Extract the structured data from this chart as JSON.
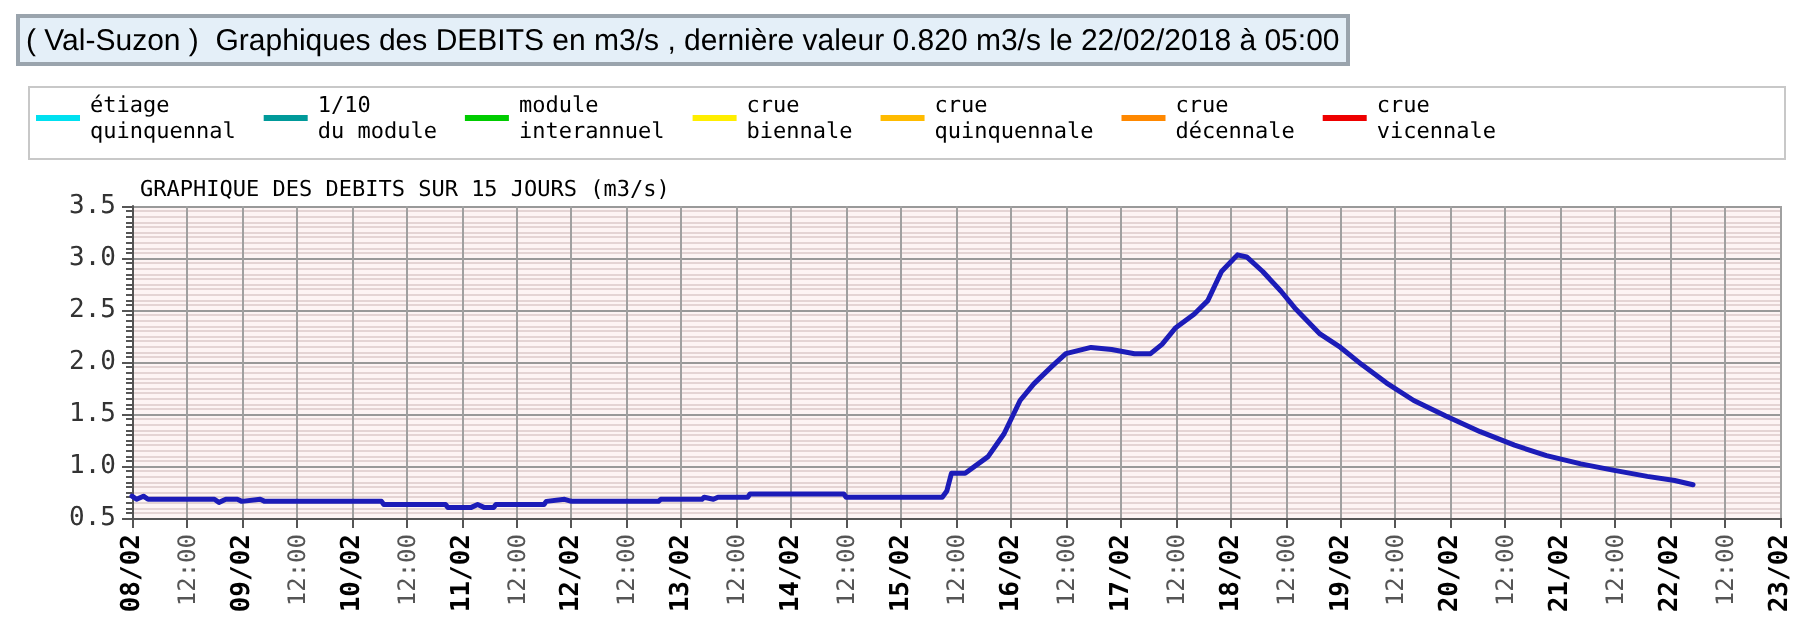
{
  "chart_data": {
    "type": "line",
    "title": "( Val-Suzon )  Graphiques des DEBITS en m3/s , dernière valeur 0.820 m3/s le 22/02/2018 à 05:00",
    "subtitle": "GRAPHIQUE DES DEBITS SUR 15 JOURS (m3/s)",
    "x": [
      "2018-02-08T00:00",
      "2018-02-08T01:00",
      "2018-02-08T02:30",
      "2018-02-08T03:30",
      "2018-02-08T18:00",
      "2018-02-08T19:00",
      "2018-02-08T20:30",
      "2018-02-08T23:00",
      "2018-02-09T00:00",
      "2018-02-09T04:00",
      "2018-02-09T05:00",
      "2018-02-10T06:30",
      "2018-02-10T07:00",
      "2018-02-10T20:30",
      "2018-02-10T21:00",
      "2018-02-11T02:00",
      "2018-02-11T03:30",
      "2018-02-11T05:00",
      "2018-02-11T07:00",
      "2018-02-11T07:30",
      "2018-02-11T18:00",
      "2018-02-11T18:30",
      "2018-02-11T22:30",
      "2018-02-12T00:00",
      "2018-02-12T19:00",
      "2018-02-12T19:30",
      "2018-02-13T04:30",
      "2018-02-13T05:00",
      "2018-02-13T07:00",
      "2018-02-13T08:00",
      "2018-02-13T14:30",
      "2018-02-13T15:00",
      "2018-02-14T11:30",
      "2018-02-14T12:00",
      "2018-02-15T09:00",
      "2018-02-15T10:00",
      "2018-02-15T11:00",
      "2018-02-15T14:00",
      "2018-02-15T19:00",
      "2018-02-15T22:30",
      "2018-02-16T02:00",
      "2018-02-16T05:00",
      "2018-02-16T09:00",
      "2018-02-16T12:00",
      "2018-02-16T17:30",
      "2018-02-16T22:00",
      "2018-02-17T03:00",
      "2018-02-17T06:30",
      "2018-02-17T09:00",
      "2018-02-17T12:00",
      "2018-02-17T16:00",
      "2018-02-17T19:00",
      "2018-02-17T22:00",
      "2018-02-18T01:30",
      "2018-02-18T03:30",
      "2018-02-18T07:00",
      "2018-02-18T11:00",
      "2018-02-18T14:00",
      "2018-02-18T19:30",
      "2018-02-19T00:00",
      "2018-02-19T04:30",
      "2018-02-19T10:00",
      "2018-02-19T16:00",
      "2018-02-19T23:00",
      "2018-02-20T06:30",
      "2018-02-20T14:00",
      "2018-02-20T21:00",
      "2018-02-21T04:30",
      "2018-02-21T11:30",
      "2018-02-21T19:00",
      "2018-02-22T01:00",
      "2018-02-22T05:00"
    ],
    "series": [
      {
        "color": "#1c1cb8",
        "values": [
          0.71,
          0.68,
          0.71,
          0.68,
          0.68,
          0.65,
          0.68,
          0.68,
          0.66,
          0.68,
          0.66,
          0.66,
          0.63,
          0.63,
          0.6,
          0.6,
          0.63,
          0.6,
          0.6,
          0.63,
          0.63,
          0.66,
          0.68,
          0.66,
          0.66,
          0.68,
          0.68,
          0.7,
          0.68,
          0.7,
          0.7,
          0.73,
          0.73,
          0.7,
          0.7,
          0.76,
          0.93,
          0.93,
          1.09,
          1.31,
          1.63,
          1.79,
          1.96,
          2.08,
          2.14,
          2.12,
          2.08,
          2.08,
          2.17,
          2.33,
          2.46,
          2.59,
          2.87,
          3.03,
          3.01,
          2.87,
          2.68,
          2.52,
          2.27,
          2.14,
          1.98,
          1.8,
          1.63,
          1.48,
          1.33,
          1.2,
          1.1,
          1.02,
          0.96,
          0.9,
          0.86,
          0.82
        ]
      },
      {
        "name": "étiage\nquinquennal",
        "color": "#00e0f0",
        "values": [
          null,
          null,
          null,
          null,
          null,
          null,
          null,
          null,
          null,
          null,
          null,
          null,
          null,
          null,
          null,
          null,
          null,
          null,
          null,
          null,
          null,
          null,
          null,
          null,
          null,
          null,
          null,
          null,
          null,
          null,
          null,
          null,
          null,
          null,
          null,
          null,
          null,
          null,
          null,
          null,
          null,
          null,
          null,
          null,
          null,
          null,
          null,
          null,
          null,
          null,
          null,
          null,
          null,
          null,
          null,
          null,
          null,
          null,
          null,
          null,
          null,
          null,
          null,
          null,
          null,
          null,
          null,
          null,
          null,
          null,
          null,
          null
        ]
      },
      {
        "name": "1/10\ndu module",
        "color": "#009a9a",
        "values": [
          null,
          null,
          null,
          null,
          null,
          null,
          null,
          null,
          null,
          null,
          null,
          null,
          null,
          null,
          null,
          null,
          null,
          null,
          null,
          null,
          null,
          null,
          null,
          null,
          null,
          null,
          null,
          null,
          null,
          null,
          null,
          null,
          null,
          null,
          null,
          null,
          null,
          null,
          null,
          null,
          null,
          null,
          null,
          null,
          null,
          null,
          null,
          null,
          null,
          null,
          null,
          null,
          null,
          null,
          null,
          null,
          null,
          null,
          null,
          null,
          null,
          null,
          null,
          null,
          null,
          null,
          null,
          null,
          null,
          null,
          null,
          null
        ]
      },
      {
        "name": "module\ninterannuel",
        "color": "#00cc00",
        "values": [
          null,
          null,
          null,
          null,
          null,
          null,
          null,
          null,
          null,
          null,
          null,
          null,
          null,
          null,
          null,
          null,
          null,
          null,
          null,
          null,
          null,
          null,
          null,
          null,
          null,
          null,
          null,
          null,
          null,
          null,
          null,
          null,
          null,
          null,
          null,
          null,
          null,
          null,
          null,
          null,
          null,
          null,
          null,
          null,
          null,
          null,
          null,
          null,
          null,
          null,
          null,
          null,
          null,
          null,
          null,
          null,
          null,
          null,
          null,
          null,
          null,
          null,
          null,
          null,
          null,
          null,
          null,
          null,
          null,
          null,
          null,
          null
        ]
      },
      {
        "name": "crue\nbiennale",
        "color": "#ffee00",
        "values": [
          null,
          null,
          null,
          null,
          null,
          null,
          null,
          null,
          null,
          null,
          null,
          null,
          null,
          null,
          null,
          null,
          null,
          null,
          null,
          null,
          null,
          null,
          null,
          null,
          null,
          null,
          null,
          null,
          null,
          null,
          null,
          null,
          null,
          null,
          null,
          null,
          null,
          null,
          null,
          null,
          null,
          null,
          null,
          null,
          null,
          null,
          null,
          null,
          null,
          null,
          null,
          null,
          null,
          null,
          null,
          null,
          null,
          null,
          null,
          null,
          null,
          null,
          null,
          null,
          null,
          null,
          null,
          null,
          null,
          null,
          null,
          null
        ]
      },
      {
        "name": "crue\nquinquennale",
        "color": "#ffbb00",
        "values": [
          null,
          null,
          null,
          null,
          null,
          null,
          null,
          null,
          null,
          null,
          null,
          null,
          null,
          null,
          null,
          null,
          null,
          null,
          null,
          null,
          null,
          null,
          null,
          null,
          null,
          null,
          null,
          null,
          null,
          null,
          null,
          null,
          null,
          null,
          null,
          null,
          null,
          null,
          null,
          null,
          null,
          null,
          null,
          null,
          null,
          null,
          null,
          null,
          null,
          null,
          null,
          null,
          null,
          null,
          null,
          null,
          null,
          null,
          null,
          null,
          null,
          null,
          null,
          null,
          null,
          null,
          null,
          null,
          null,
          null,
          null,
          null
        ]
      },
      {
        "name": "crue\ndécennale",
        "color": "#ff8800",
        "values": [
          null,
          null,
          null,
          null,
          null,
          null,
          null,
          null,
          null,
          null,
          null,
          null,
          null,
          null,
          null,
          null,
          null,
          null,
          null,
          null,
          null,
          null,
          null,
          null,
          null,
          null,
          null,
          null,
          null,
          null,
          null,
          null,
          null,
          null,
          null,
          null,
          null,
          null,
          null,
          null,
          null,
          null,
          null,
          null,
          null,
          null,
          null,
          null,
          null,
          null,
          null,
          null,
          null,
          null,
          null,
          null,
          null,
          null,
          null,
          null,
          null,
          null,
          null,
          null,
          null,
          null,
          null,
          null,
          null,
          null,
          null,
          null
        ]
      },
      {
        "name": "crue\nvicennale",
        "color": "#ee0000",
        "values": [
          null,
          null,
          null,
          null,
          null,
          null,
          null,
          null,
          null,
          null,
          null,
          null,
          null,
          null,
          null,
          null,
          null,
          null,
          null,
          null,
          null,
          null,
          null,
          null,
          null,
          null,
          null,
          null,
          null,
          null,
          null,
          null,
          null,
          null,
          null,
          null,
          null,
          null,
          null,
          null,
          null,
          null,
          null,
          null,
          null,
          null,
          null,
          null,
          null,
          null,
          null,
          null,
          null,
          null,
          null,
          null,
          null,
          null,
          null,
          null,
          null,
          null,
          null,
          null,
          null,
          null,
          null,
          null,
          null,
          null,
          null,
          null
        ]
      }
    ],
    "ylim": [
      0.5,
      3.5
    ],
    "yticks": [
      0.5,
      {
        "value": 1,
        "label": "1.0"
      },
      1.5,
      {
        "value": 2,
        "label": "2.0"
      },
      2.5,
      {
        "value": 3,
        "label": "3.0"
      },
      3.5
    ],
    "xlim": [
      "2018-02-08T00:00",
      "2018-02-23T00:00"
    ],
    "xticks": [
      {
        "value": "2018-02-08T00:00",
        "label": "08/02"
      },
      {
        "value": "2018-02-08T12:00",
        "label": "12:00"
      },
      {
        "value": "2018-02-09T00:00",
        "label": "09/02"
      },
      {
        "value": "2018-02-09T12:00",
        "label": "12:00"
      },
      {
        "value": "2018-02-10T00:00",
        "label": "10/02"
      },
      {
        "value": "2018-02-10T12:00",
        "label": "12:00"
      },
      {
        "value": "2018-02-11T00:00",
        "label": "11/02"
      },
      {
        "value": "2018-02-11T12:00",
        "label": "12:00"
      },
      {
        "value": "2018-02-12T00:00",
        "label": "12/02"
      },
      {
        "value": "2018-02-12T12:00",
        "label": "12:00"
      },
      {
        "value": "2018-02-13T00:00",
        "label": "13/02"
      },
      {
        "value": "2018-02-13T12:00",
        "label": "12:00"
      },
      {
        "value": "2018-02-14T00:00",
        "label": "14/02"
      },
      {
        "value": "2018-02-14T12:00",
        "label": "12:00"
      },
      {
        "value": "2018-02-15T00:00",
        "label": "15/02"
      },
      {
        "value": "2018-02-15T12:00",
        "label": "12:00"
      },
      {
        "value": "2018-02-16T00:00",
        "label": "16/02"
      },
      {
        "value": "2018-02-16T12:00",
        "label": "12:00"
      },
      {
        "value": "2018-02-17T00:00",
        "label": "17/02"
      },
      {
        "value": "2018-02-17T12:00",
        "label": "12:00"
      },
      {
        "value": "2018-02-18T00:00",
        "label": "18/02"
      },
      {
        "value": "2018-02-18T12:00",
        "label": "12:00"
      },
      {
        "value": "2018-02-19T00:00",
        "label": "19/02"
      },
      {
        "value": "2018-02-19T12:00",
        "label": "12:00"
      },
      {
        "value": "2018-02-20T00:00",
        "label": "20/02"
      },
      {
        "value": "2018-02-20T12:00",
        "label": "12:00"
      },
      {
        "value": "2018-02-21T00:00",
        "label": "21/02"
      },
      {
        "value": "2018-02-21T12:00",
        "label": "12:00"
      },
      {
        "value": "2018-02-22T00:00",
        "label": "22/02"
      },
      {
        "value": "2018-02-22T12:00",
        "label": "12:00"
      },
      {
        "value": "2018-02-23T00:00",
        "label": "23/02"
      }
    ],
    "grid": true,
    "legend": "top left",
    "marker": "none",
    "line_style": "solid"
  }
}
